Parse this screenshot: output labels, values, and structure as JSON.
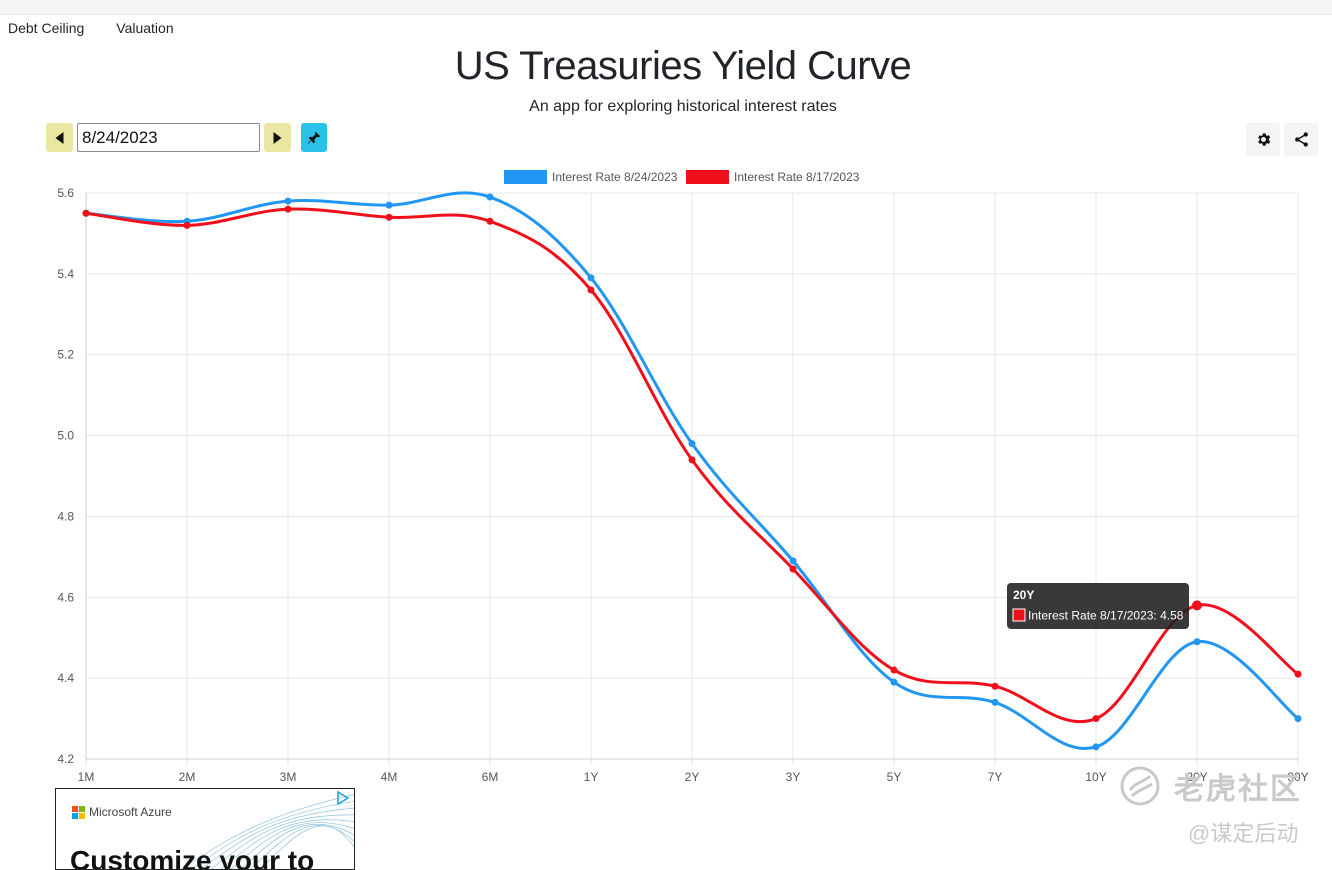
{
  "nav": {
    "items": [
      {
        "label": "Debt Ceiling"
      },
      {
        "label": "Valuation"
      }
    ]
  },
  "header": {
    "title": "US Treasuries Yield Curve",
    "subtitle": "An app for exploring historical interest rates"
  },
  "controls": {
    "date_value": "8/24/2023"
  },
  "icons": {
    "prev": "caret-left-icon",
    "next": "caret-right-icon",
    "pin": "pin-icon",
    "settings": "gear-icon",
    "share": "share-icon"
  },
  "colors": {
    "series_blue": "#2196f3",
    "series_red": "#f0101c",
    "nav_btn": "#ece6a3",
    "pin_btn": "#2bc0e8"
  },
  "chart_data": {
    "type": "line",
    "categories": [
      "1M",
      "2M",
      "3M",
      "4M",
      "6M",
      "1Y",
      "2Y",
      "3Y",
      "5Y",
      "7Y",
      "10Y",
      "20Y",
      "30Y"
    ],
    "series": [
      {
        "name": "Interest Rate 8/24/2023",
        "color": "#2196f3",
        "values": [
          5.55,
          5.53,
          5.58,
          5.57,
          5.59,
          5.39,
          4.98,
          4.69,
          4.39,
          4.34,
          4.23,
          4.49,
          4.3
        ]
      },
      {
        "name": "Interest Rate 8/17/2023",
        "color": "#f0101c",
        "values": [
          5.55,
          5.52,
          5.56,
          5.54,
          5.53,
          5.36,
          4.94,
          4.67,
          4.42,
          4.38,
          4.3,
          4.58,
          4.41
        ]
      }
    ],
    "ylim": [
      4.2,
      5.6
    ],
    "yticks": [
      "4.2",
      "4.4",
      "4.6",
      "4.8",
      "5.0",
      "5.2",
      "5.4",
      "5.6"
    ],
    "grid": true,
    "legend": "top-center",
    "tooltip": {
      "title": "20Y",
      "text": "Interest Rate 8/17/2023: 4.58"
    }
  },
  "ad": {
    "brand": "Microsoft Azure",
    "headline": "Customize your to"
  },
  "watermark": {
    "main": "老虎社区",
    "sub": "@谋定后动"
  }
}
